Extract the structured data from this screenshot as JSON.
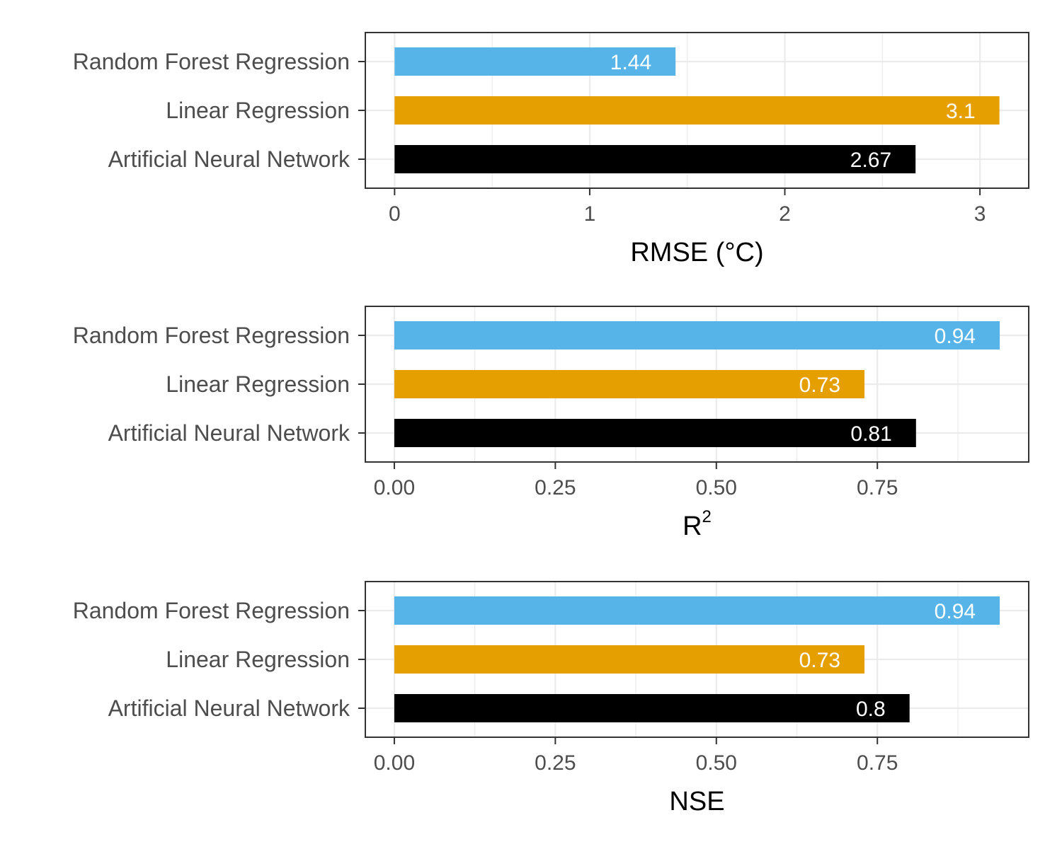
{
  "chart_data": [
    {
      "type": "bar",
      "orientation": "horizontal",
      "categories": [
        "Random Forest Regression",
        "Linear Regression",
        "Artificial Neural Network"
      ],
      "values": [
        1.44,
        3.1,
        2.67
      ],
      "value_labels": [
        "1.44",
        "3.1",
        "2.67"
      ],
      "colors": [
        "#56B4E9",
        "#E69F00",
        "#000000"
      ],
      "xlabel": "RMSE (°C)",
      "xlim": [
        -0.15,
        3.25
      ],
      "ticks": [
        0,
        1,
        2,
        3
      ],
      "tick_labels": [
        "0",
        "1",
        "2",
        "3"
      ],
      "grid": true
    },
    {
      "type": "bar",
      "orientation": "horizontal",
      "categories": [
        "Random Forest Regression",
        "Linear Regression",
        "Artificial Neural Network"
      ],
      "values": [
        0.94,
        0.73,
        0.81
      ],
      "value_labels": [
        "0.94",
        "0.73",
        "0.81"
      ],
      "colors": [
        "#56B4E9",
        "#E69F00",
        "#000000"
      ],
      "xlabel": "R",
      "xlabel_superscript": "2",
      "xlim": [
        -0.045,
        0.985
      ],
      "ticks": [
        0,
        0.25,
        0.5,
        0.75
      ],
      "tick_labels": [
        "0.00",
        "0.25",
        "0.50",
        "0.75"
      ],
      "grid": true
    },
    {
      "type": "bar",
      "orientation": "horizontal",
      "categories": [
        "Random Forest Regression",
        "Linear Regression",
        "Artificial Neural Network"
      ],
      "values": [
        0.94,
        0.73,
        0.8
      ],
      "value_labels": [
        "0.94",
        "0.73",
        "0.8"
      ],
      "colors": [
        "#56B4E9",
        "#E69F00",
        "#000000"
      ],
      "xlabel": "NSE",
      "xlim": [
        -0.045,
        0.985
      ],
      "ticks": [
        0,
        0.25,
        0.5,
        0.75
      ],
      "tick_labels": [
        "0.00",
        "0.25",
        "0.50",
        "0.75"
      ],
      "grid": true
    }
  ]
}
